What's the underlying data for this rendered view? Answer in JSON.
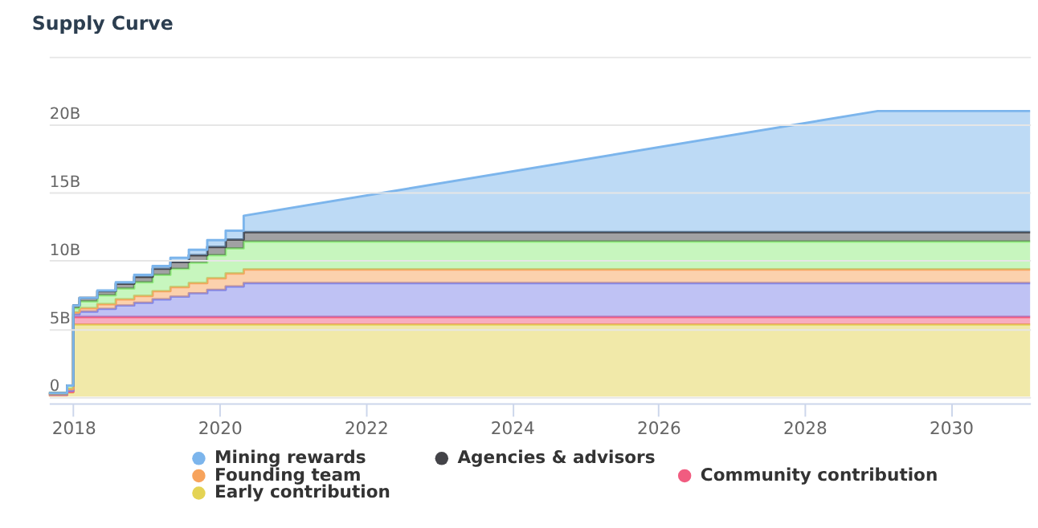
{
  "chart_data": {
    "type": "area",
    "title": "Supply Curve",
    "stacked": true,
    "grid": "y",
    "legend": "bottom",
    "x": [
      "2017-09",
      "2017-12",
      "2017-12",
      "2018-01",
      "2018-01",
      "2018-02",
      "2018-02",
      "2018-05",
      "2018-05",
      "2018-08",
      "2018-08",
      "2018-11",
      "2018-11",
      "2019-02",
      "2019-02",
      "2019-05",
      "2019-05",
      "2019-08",
      "2019-08",
      "2019-11",
      "2019-11",
      "2020-02",
      "2020-02",
      "2020-05",
      "2020-05",
      "2029-01",
      "2031-02"
    ],
    "xlim": [
      "2017-09",
      "2031-02"
    ],
    "xticks": [
      "2018",
      "2020",
      "2022",
      "2024",
      "2026",
      "2028",
      "2030"
    ],
    "ylim": [
      -0.5,
      25
    ],
    "yticks": [
      0,
      {
        "value": 5,
        "label": "5B"
      },
      {
        "value": 10,
        "label": "10B"
      },
      {
        "value": 15,
        "label": "15B"
      },
      {
        "value": 20,
        "label": "20B"
      },
      {
        "value": 25,
        "label": null
      }
    ],
    "series": [
      {
        "name": "Early contribution",
        "color": "#e4d354",
        "values": [
          0.1,
          0.1,
          0.3,
          0.3,
          5.3,
          5.3,
          5.3,
          5.3,
          5.3,
          5.3,
          5.3,
          5.3,
          5.3,
          5.3,
          5.3,
          5.3,
          5.3,
          5.3,
          5.3,
          5.3,
          5.3,
          5.3,
          5.3,
          5.3,
          5.3,
          5.3,
          5.3
        ]
      },
      {
        "name": "Community contribution",
        "color": "#f15c80",
        "values": [
          0.02,
          0.02,
          0.05,
          0.05,
          0.55,
          0.55,
          0.55,
          0.55,
          0.55,
          0.55,
          0.55,
          0.55,
          0.55,
          0.55,
          0.55,
          0.55,
          0.55,
          0.55,
          0.55,
          0.55,
          0.55,
          0.55,
          0.55,
          0.55,
          0.55,
          0.55,
          0.55
        ]
      },
      {
        "color": "#8085e9",
        "values": [
          0.05,
          0.05,
          0.1,
          0.1,
          0.2,
          0.2,
          0.4,
          0.4,
          0.6,
          0.6,
          0.85,
          0.85,
          1.05,
          1.05,
          1.3,
          1.3,
          1.5,
          1.5,
          1.75,
          1.75,
          2.0,
          2.0,
          2.25,
          2.25,
          2.5,
          2.5,
          2.5
        ]
      },
      {
        "name": "Founding team",
        "color": "#f7a35c",
        "values": [
          0.03,
          0.03,
          0.1,
          0.1,
          0.15,
          0.15,
          0.25,
          0.25,
          0.35,
          0.35,
          0.45,
          0.45,
          0.5,
          0.5,
          0.6,
          0.6,
          0.7,
          0.7,
          0.75,
          0.75,
          0.85,
          0.85,
          0.95,
          0.95,
          1.0,
          1.0,
          1.0
        ]
      },
      {
        "color": "#90ed7d",
        "values": [
          0.05,
          0.05,
          0.25,
          0.25,
          0.3,
          0.3,
          0.5,
          0.5,
          0.65,
          0.65,
          0.8,
          0.8,
          1.0,
          1.0,
          1.2,
          1.2,
          1.35,
          1.35,
          1.5,
          1.5,
          1.7,
          1.7,
          1.85,
          1.85,
          2.05,
          2.05,
          2.05
        ]
      },
      {
        "name": "Agencies & advisors",
        "color": "#434348",
        "values": [
          0,
          0,
          0,
          0,
          0.2,
          0.2,
          0.25,
          0.25,
          0.3,
          0.3,
          0.35,
          0.35,
          0.4,
          0.4,
          0.45,
          0.45,
          0.5,
          0.5,
          0.55,
          0.55,
          0.6,
          0.6,
          0.65,
          0.65,
          0.7,
          0.7,
          0.7
        ]
      },
      {
        "name": "Mining rewards",
        "color": "#7cb5ec",
        "values": [
          0,
          0,
          0,
          0,
          0,
          0,
          0,
          0,
          0.05,
          0.05,
          0.1,
          0.1,
          0.15,
          0.15,
          0.2,
          0.2,
          0.3,
          0.3,
          0.4,
          0.4,
          0.5,
          0.5,
          0.65,
          0.65,
          1.2,
          8.9,
          8.9
        ]
      }
    ]
  }
}
